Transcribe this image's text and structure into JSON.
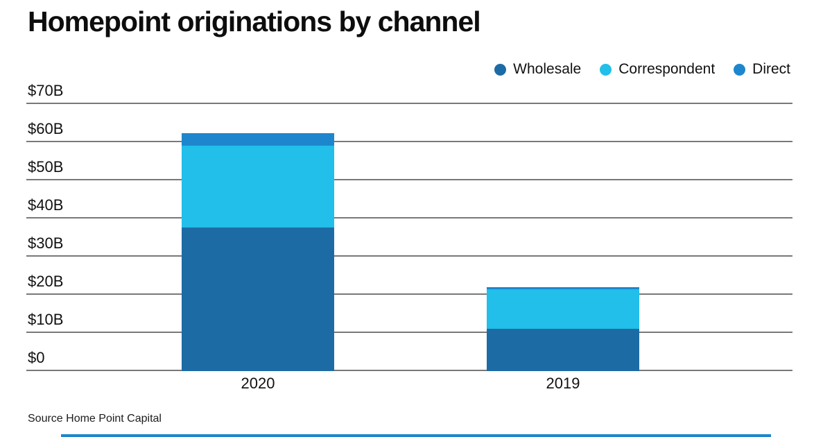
{
  "title": "Homepoint originations by channel",
  "source": "Source Home Point Capital",
  "legend": {
    "items": [
      {
        "label": "Wholesale",
        "color": "#1d6ba5"
      },
      {
        "label": "Correspondent",
        "color": "#21bfe9"
      },
      {
        "label": "Direct",
        "color": "#1e86cd"
      }
    ]
  },
  "chart_data": {
    "type": "bar",
    "stacked": true,
    "title": "Homepoint originations by channel",
    "categories": [
      "2020",
      "2019"
    ],
    "series": [
      {
        "name": "Wholesale",
        "color": "#1d6ba5",
        "values": [
          37.6,
          11.1
        ]
      },
      {
        "name": "Correspondent",
        "color": "#21bfe9",
        "values": [
          21.5,
          10.4
        ]
      },
      {
        "name": "Direct",
        "color": "#1e86cd",
        "values": [
          3.3,
          0.5
        ]
      }
    ],
    "totals": [
      62.4,
      22.0
    ],
    "unit": "USD billions",
    "ylim": [
      0,
      70
    ],
    "ytick_values": [
      70,
      60,
      50,
      40,
      30,
      20,
      10,
      0
    ],
    "ytick_labels": [
      "$70B",
      "$60B",
      "$50B",
      "$40B",
      "$30B",
      "$20B",
      "$10B",
      "$0"
    ],
    "grid": "horizontal",
    "legend_position": "top-right"
  },
  "colors": {
    "accent_bar": "#1e86cd",
    "gridline": "#787878",
    "text": "#111111"
  }
}
